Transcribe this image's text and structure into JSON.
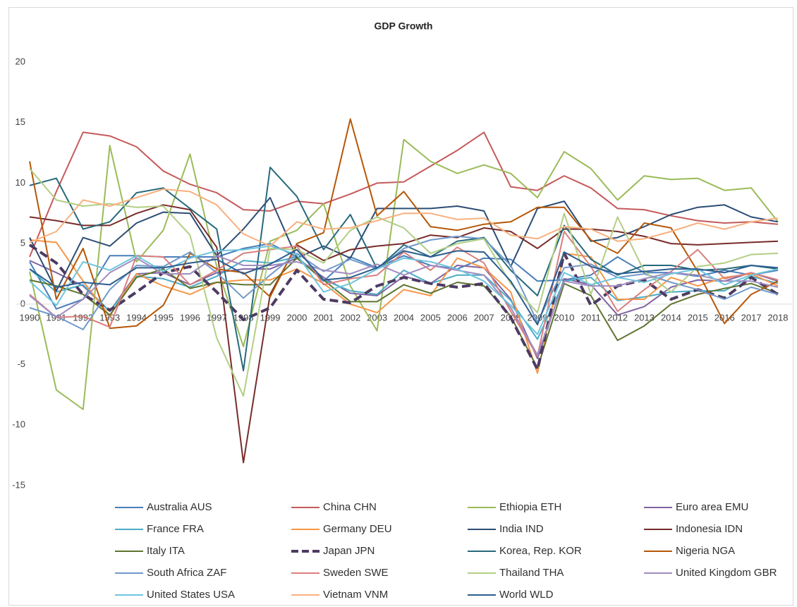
{
  "chart_data": {
    "type": "line",
    "title": "GDP Growth",
    "categories": [
      "1990",
      "1991",
      "1992",
      "1993",
      "1994",
      "1995",
      "1996",
      "1997",
      "1998",
      "1999",
      "2000",
      "2001",
      "2002",
      "2003",
      "2004",
      "2005",
      "2006",
      "2007",
      "2008",
      "2009",
      "2010",
      "2011",
      "2012",
      "2013",
      "2014",
      "2015",
      "2016",
      "2017",
      "2018"
    ],
    "ylim": [
      -15,
      20
    ],
    "yticks": [
      -15,
      -10,
      -5,
      0,
      5,
      10,
      15,
      20
    ],
    "grid": false,
    "legend": "bottom",
    "series": [
      {
        "name": "Australia AUS",
        "color": "#4a7ebb",
        "values": [
          3.5,
          -0.4,
          0.4,
          4.0,
          4.0,
          3.9,
          3.9,
          3.9,
          4.6,
          5.0,
          3.9,
          1.9,
          3.9,
          3.0,
          4.0,
          3.2,
          2.9,
          3.8,
          3.7,
          1.9,
          2.0,
          2.4,
          3.9,
          2.6,
          2.6,
          2.3,
          2.8,
          2.4,
          2.8
        ]
      },
      {
        "name": "China CHN",
        "color": "#c55a5a",
        "values": [
          3.9,
          9.3,
          14.2,
          13.9,
          13.0,
          11.0,
          9.9,
          9.2,
          7.8,
          7.7,
          8.5,
          8.3,
          9.1,
          10.0,
          10.1,
          11.4,
          12.7,
          14.2,
          9.7,
          9.4,
          10.6,
          9.6,
          7.9,
          7.8,
          7.3,
          6.9,
          6.7,
          6.8,
          6.6
        ]
      },
      {
        "name": "Ethiopia ETH",
        "color": "#9bbb59",
        "values": [
          2.7,
          -7.1,
          -8.7,
          13.1,
          3.5,
          6.1,
          12.4,
          3.1,
          -3.5,
          5.2,
          6.1,
          8.3,
          1.5,
          -2.2,
          13.6,
          11.8,
          10.8,
          11.5,
          10.8,
          8.8,
          12.6,
          11.2,
          8.6,
          10.6,
          10.3,
          10.4,
          9.4,
          9.6,
          6.8
        ]
      },
      {
        "name": "Euro area EMU",
        "color": "#8064a2",
        "values": [
          3.6,
          2.6,
          1.5,
          -0.6,
          2.5,
          2.6,
          1.6,
          2.6,
          2.9,
          2.9,
          3.8,
          2.2,
          0.9,
          0.7,
          2.3,
          1.7,
          3.2,
          3.0,
          0.4,
          -4.5,
          2.1,
          1.6,
          -0.9,
          -0.2,
          1.4,
          2.0,
          1.9,
          2.6,
          1.9
        ]
      },
      {
        "name": "France FRA",
        "color": "#4bacc6",
        "values": [
          2.9,
          1.0,
          1.6,
          -0.6,
          2.3,
          2.1,
          1.4,
          2.3,
          3.6,
          3.4,
          3.9,
          2.0,
          1.1,
          0.8,
          2.8,
          1.7,
          2.4,
          2.4,
          0.3,
          -2.9,
          1.9,
          2.2,
          0.3,
          0.6,
          1.0,
          1.1,
          1.1,
          2.3,
          1.7
        ]
      },
      {
        "name": "Germany DEU",
        "color": "#f79646",
        "values": [
          5.3,
          5.1,
          1.9,
          -1.0,
          2.5,
          1.5,
          0.8,
          1.8,
          2.0,
          2.0,
          2.9,
          1.7,
          0.0,
          -0.7,
          1.2,
          0.7,
          3.8,
          3.0,
          1.0,
          -5.7,
          4.2,
          3.9,
          0.4,
          0.4,
          2.2,
          1.5,
          2.2,
          2.5,
          1.5
        ]
      },
      {
        "name": "India IND",
        "color": "#2c4d75",
        "values": [
          5.5,
          1.1,
          5.5,
          4.8,
          6.7,
          7.6,
          7.5,
          4.0,
          6.2,
          8.8,
          3.8,
          4.8,
          3.8,
          7.9,
          7.9,
          7.9,
          8.1,
          7.7,
          3.1,
          7.9,
          8.5,
          5.2,
          5.5,
          6.4,
          7.4,
          8.0,
          8.2,
          7.2,
          6.8
        ]
      },
      {
        "name": "Indonesia IDN",
        "color": "#772c2a",
        "values": [
          7.2,
          6.9,
          6.5,
          6.5,
          7.5,
          8.2,
          7.8,
          4.7,
          -13.1,
          0.8,
          4.9,
          3.6,
          4.5,
          4.8,
          5.0,
          5.7,
          5.5,
          6.3,
          6.0,
          4.6,
          6.2,
          6.2,
          6.0,
          5.6,
          5.0,
          4.9,
          5.0,
          5.1,
          5.2
        ]
      },
      {
        "name": "Italy ITA",
        "color": "#5f7530",
        "values": [
          2.0,
          1.5,
          0.8,
          -0.9,
          2.2,
          2.9,
          1.3,
          1.8,
          1.6,
          1.6,
          3.8,
          2.0,
          0.2,
          0.2,
          1.6,
          0.9,
          1.8,
          1.5,
          -1.0,
          -5.3,
          1.7,
          0.7,
          -3.0,
          -1.8,
          0.0,
          0.8,
          1.3,
          1.7,
          0.9
        ]
      },
      {
        "name": "Japan JPN",
        "color": "#4d3b62",
        "style": "dashed",
        "values": [
          4.9,
          3.4,
          0.8,
          -0.5,
          1.0,
          2.6,
          3.1,
          1.0,
          -1.3,
          -0.3,
          2.8,
          0.4,
          0.1,
          1.5,
          2.2,
          1.7,
          1.4,
          1.7,
          -1.1,
          -5.4,
          4.2,
          -0.1,
          1.5,
          2.0,
          0.4,
          1.2,
          0.5,
          2.2,
          0.8
        ]
      },
      {
        "name": "Korea, Rep. KOR",
        "color": "#276a7c",
        "values": [
          9.8,
          10.4,
          6.2,
          6.8,
          9.2,
          9.6,
          7.9,
          6.2,
          -5.5,
          11.3,
          8.9,
          4.5,
          7.4,
          2.9,
          4.9,
          3.9,
          5.2,
          5.5,
          2.8,
          0.7,
          6.5,
          3.7,
          2.4,
          3.2,
          3.2,
          2.8,
          2.9,
          3.2,
          2.9
        ]
      },
      {
        "name": "Nigeria NGA",
        "color": "#b65708",
        "values": [
          11.8,
          0.4,
          4.6,
          -2.0,
          -1.8,
          -0.1,
          4.2,
          2.9,
          2.6,
          0.6,
          5.0,
          5.9,
          15.3,
          7.3,
          9.3,
          6.4,
          6.1,
          6.6,
          6.8,
          8.0,
          8.0,
          5.3,
          4.2,
          6.7,
          6.3,
          2.7,
          -1.6,
          0.8,
          1.9
        ]
      },
      {
        "name": "South Africa ZAF",
        "color": "#729aca",
        "values": [
          -0.3,
          -1.0,
          -2.1,
          1.2,
          3.2,
          3.1,
          4.3,
          2.6,
          0.5,
          2.4,
          4.2,
          2.7,
          3.7,
          2.9,
          4.6,
          5.3,
          5.6,
          5.4,
          3.2,
          -1.5,
          3.0,
          3.3,
          2.2,
          2.5,
          1.8,
          1.2,
          0.4,
          1.4,
          0.8
        ]
      },
      {
        "name": "Sweden SWE",
        "color": "#d9807e",
        "values": [
          0.8,
          -1.1,
          -1.0,
          -1.9,
          4.0,
          3.9,
          1.6,
          2.8,
          4.2,
          4.5,
          4.8,
          1.6,
          2.1,
          2.4,
          4.3,
          2.8,
          4.7,
          3.4,
          -0.6,
          -4.3,
          6.0,
          3.1,
          -0.6,
          1.2,
          2.7,
          4.5,
          2.1,
          2.6,
          2.0
        ]
      },
      {
        "name": "Thailand THA",
        "color": "#b3ce85",
        "values": [
          11.2,
          8.6,
          8.1,
          8.3,
          8.0,
          8.1,
          5.7,
          -2.8,
          -7.6,
          4.6,
          4.5,
          3.4,
          6.1,
          7.2,
          6.3,
          4.2,
          5.0,
          5.4,
          1.7,
          -0.7,
          7.5,
          0.8,
          7.2,
          2.7,
          1.0,
          3.1,
          3.4,
          4.1,
          4.2
        ]
      },
      {
        "name": "United Kingdom GBR",
        "color": "#a08cc0",
        "values": [
          0.7,
          -1.1,
          0.4,
          2.6,
          3.8,
          2.5,
          2.5,
          4.0,
          3.2,
          3.2,
          3.5,
          2.8,
          2.5,
          3.3,
          2.4,
          3.2,
          2.8,
          2.4,
          -0.3,
          -4.2,
          1.9,
          1.5,
          1.5,
          2.1,
          2.6,
          2.4,
          1.9,
          1.9,
          1.4
        ]
      },
      {
        "name": "United States USA",
        "color": "#6fc5dd",
        "values": [
          1.9,
          -0.1,
          3.5,
          2.8,
          4.0,
          2.7,
          3.8,
          4.4,
          4.5,
          4.8,
          4.1,
          1.0,
          1.7,
          2.9,
          3.8,
          3.5,
          2.9,
          1.9,
          -0.1,
          -2.5,
          2.6,
          1.6,
          2.2,
          1.8,
          2.5,
          2.9,
          1.6,
          2.4,
          2.9
        ]
      },
      {
        "name": "Vietnam VNM",
        "color": "#f9b07f",
        "values": [
          5.1,
          6.0,
          8.6,
          8.1,
          8.8,
          9.5,
          9.3,
          8.2,
          5.8,
          4.8,
          6.8,
          6.2,
          6.3,
          6.9,
          7.5,
          7.5,
          7.0,
          7.1,
          5.7,
          5.4,
          6.4,
          6.2,
          5.2,
          5.4,
          6.0,
          6.7,
          6.2,
          6.8,
          7.1
        ]
      },
      {
        "name": "World WLD",
        "color": "#2c5e8f",
        "values": [
          2.9,
          1.4,
          1.8,
          1.6,
          3.0,
          3.0,
          3.4,
          3.7,
          2.5,
          3.3,
          4.5,
          2.0,
          2.2,
          3.0,
          4.4,
          3.9,
          4.4,
          4.3,
          1.9,
          -1.7,
          4.3,
          3.1,
          2.5,
          2.7,
          2.9,
          2.9,
          2.6,
          3.2,
          3.0
        ]
      }
    ]
  }
}
